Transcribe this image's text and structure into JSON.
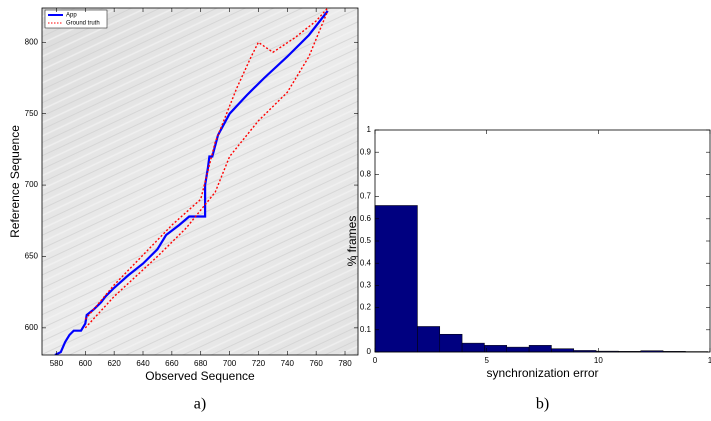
{
  "chart_data": [
    {
      "type": "line",
      "xlabel": "Observed Sequence",
      "ylabel": "Reference Sequence",
      "caption": "a)",
      "xlim": [
        570,
        789
      ],
      "ylim": [
        581,
        824
      ],
      "xticks": [
        580,
        600,
        620,
        640,
        660,
        680,
        700,
        720,
        740,
        760,
        780
      ],
      "yticks": [
        600,
        650,
        700,
        750,
        800
      ],
      "legend": "upper left",
      "grid": false,
      "series": [
        {
          "name": "App",
          "color": "#0000ff",
          "style": "solid",
          "x": [
            579,
            583,
            586,
            589,
            592,
            597,
            600,
            601,
            606,
            611,
            614,
            620,
            630,
            640,
            650,
            656,
            665,
            672,
            683,
            683,
            685,
            686,
            688,
            692,
            700,
            712,
            724,
            740,
            755,
            768
          ],
          "values": [
            581,
            583,
            590,
            595,
            598,
            598,
            603,
            609,
            613,
            618,
            622,
            628,
            637,
            645,
            655,
            665,
            672,
            678,
            678,
            700,
            712,
            720,
            720,
            735,
            750,
            763,
            775,
            790,
            805,
            822
          ]
        },
        {
          "name": "Ground truth",
          "color": "#ff0000",
          "style": "dotted",
          "x": [
            600,
            620,
            660,
            680,
            690,
            705,
            715,
            720,
            730,
            745,
            760,
            768,
            null,
            600,
            620,
            650,
            670,
            690,
            700,
            720,
            740,
            755,
            768
          ],
          "values": [
            606,
            630,
            672,
            690,
            730,
            768,
            790,
            800,
            793,
            803,
            815,
            824,
            null,
            600,
            622,
            650,
            670,
            695,
            720,
            745,
            765,
            790,
            822
          ]
        }
      ]
    },
    {
      "type": "histogram",
      "xlabel": "synchronization error",
      "ylabel": "% frames",
      "caption": "b)",
      "color": "#000080",
      "xlim": [
        0,
        15
      ],
      "ylim": [
        0,
        1
      ],
      "xticks": [
        0,
        5,
        10,
        {
          "value": 15,
          "label": "1"
        }
      ],
      "yticks": [
        0,
        0.1,
        0.2,
        0.3,
        0.4,
        0.5,
        0.6,
        0.7,
        0.8,
        0.9,
        1
      ],
      "bins": [
        0,
        1.9,
        2.9,
        3.9,
        4.9,
        5.9,
        6.9,
        7.9,
        8.9,
        9.9,
        10.9,
        11.9,
        12.9,
        13.9,
        14.9
      ],
      "values": [
        0.66,
        0.115,
        0.08,
        0.04,
        0.03,
        0.022,
        0.03,
        0.015,
        0.007,
        0.004,
        0.003,
        0.006,
        0.003,
        0.002
      ]
    }
  ]
}
